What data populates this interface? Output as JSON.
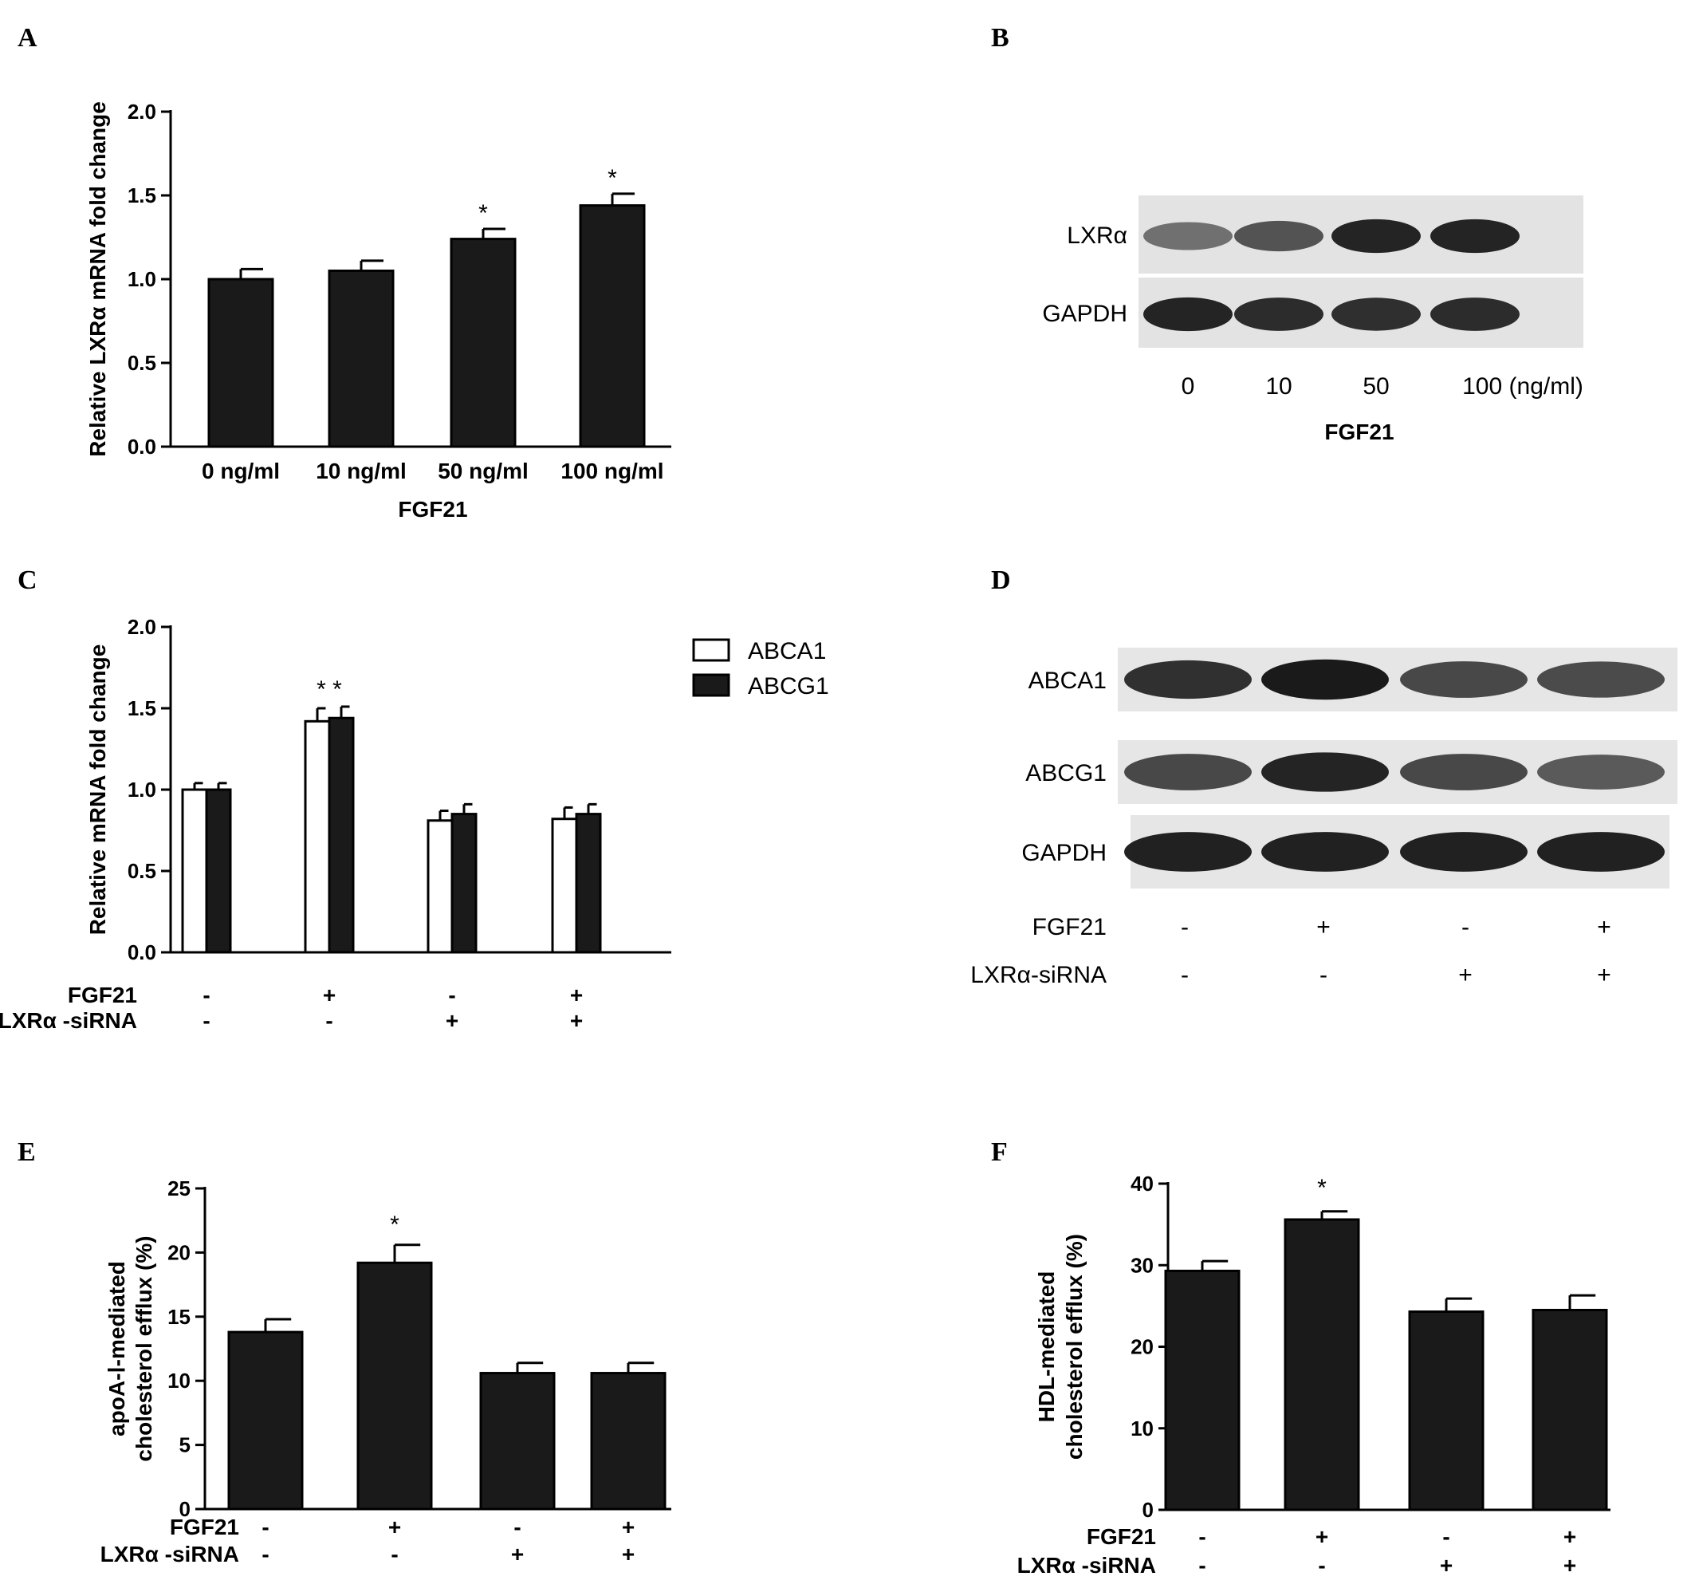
{
  "figure": {
    "panel_letters": [
      "A",
      "B",
      "C",
      "D",
      "E",
      "F"
    ]
  },
  "chart_data": [
    {
      "panel": "A",
      "type": "bar",
      "ylabel": "Relative LXRα  mRNA fold change",
      "xlabel": "FGF21",
      "categories": [
        "0 ng/ml",
        "10 ng/ml",
        "50 ng/ml",
        "100 ng/ml"
      ],
      "values": [
        1.0,
        1.05,
        1.24,
        1.44
      ],
      "errors": [
        0.06,
        0.06,
        0.06,
        0.07
      ],
      "significance": [
        "",
        "",
        "*",
        "*"
      ],
      "ylim": [
        0,
        2.0
      ],
      "yticks": [
        "0.0",
        "0.5",
        "1.0",
        "1.5",
        "2.0"
      ],
      "bar_color": "#1a1a1a"
    },
    {
      "panel": "C",
      "type": "bar",
      "ylabel": "Relative mRNA fold change",
      "series": [
        {
          "name": "ABCA1",
          "values": [
            1.0,
            1.42,
            0.81,
            0.82
          ],
          "errors": [
            0.04,
            0.08,
            0.06,
            0.07
          ],
          "color": "#ffffff"
        },
        {
          "name": "ABCG1",
          "values": [
            1.0,
            1.44,
            0.85,
            0.85
          ],
          "errors": [
            0.04,
            0.07,
            0.06,
            0.06
          ],
          "color": "#1a1a1a"
        }
      ],
      "significance": [
        "",
        "* *",
        "",
        ""
      ],
      "ylim": [
        0,
        2.0
      ],
      "yticks": [
        "0.0",
        "0.5",
        "1.0",
        "1.5",
        "2.0"
      ],
      "conditions": {
        "rows": [
          "FGF21",
          "LXRα -siRNA"
        ],
        "values": [
          [
            "-",
            "+",
            "-",
            "+"
          ],
          [
            "-",
            "-",
            "+",
            "+"
          ]
        ]
      }
    },
    {
      "panel": "E",
      "type": "bar",
      "ylabel": [
        "apoA-Ⅰ-mediated",
        "cholesterol efflux (%)"
      ],
      "values": [
        13.8,
        19.2,
        10.6,
        10.6
      ],
      "errors": [
        1.0,
        1.4,
        0.8,
        0.8
      ],
      "significance": [
        "",
        "*",
        "",
        ""
      ],
      "ylim": [
        0,
        25
      ],
      "yticks": [
        "0",
        "5",
        "10",
        "15",
        "20",
        "25"
      ],
      "conditions": {
        "rows": [
          "FGF21",
          "LXRα -siRNA"
        ],
        "values": [
          [
            "-",
            "+",
            "-",
            "+"
          ],
          [
            "-",
            "-",
            "+",
            "+"
          ]
        ]
      },
      "bar_color": "#1a1a1a"
    },
    {
      "panel": "F",
      "type": "bar",
      "ylabel": [
        "HDL-mediated",
        "cholesterol efflux (%)"
      ],
      "values": [
        29.3,
        35.6,
        24.3,
        24.5
      ],
      "errors": [
        1.2,
        1.0,
        1.6,
        1.8
      ],
      "significance": [
        "",
        "*",
        "",
        ""
      ],
      "ylim": [
        0,
        40
      ],
      "yticks": [
        "0",
        "10",
        "20",
        "30",
        "40"
      ],
      "conditions": {
        "rows": [
          "FGF21",
          "LXRα -siRNA"
        ],
        "values": [
          [
            "-",
            "+",
            "-",
            "+"
          ],
          [
            "-",
            "-",
            "+",
            "+"
          ]
        ]
      },
      "bar_color": "#1a1a1a"
    }
  ],
  "blots": [
    {
      "panel": "B",
      "rows": [
        {
          "label": "LXRα",
          "intensities": [
            0.55,
            0.72,
            0.95,
            0.95
          ]
        },
        {
          "label": "GAPDH",
          "intensities": [
            0.95,
            0.92,
            0.9,
            0.92
          ]
        }
      ],
      "lane_labels": [
        "0",
        "10",
        "50",
        "100 (ng/ml)"
      ],
      "xlabel": "FGF21"
    },
    {
      "panel": "D",
      "rows": [
        {
          "label": "ABCA1",
          "intensities": [
            0.9,
            1.0,
            0.78,
            0.76
          ]
        },
        {
          "label": "ABCG1",
          "intensities": [
            0.78,
            0.95,
            0.78,
            0.68
          ]
        },
        {
          "label": "GAPDH",
          "intensities": [
            0.97,
            0.97,
            0.97,
            0.97
          ]
        }
      ],
      "conditions": {
        "rows": [
          "FGF21",
          "LXRα-siRNA"
        ],
        "values": [
          [
            "-",
            "+",
            "-",
            "+"
          ],
          [
            "-",
            "-",
            "+",
            "+"
          ]
        ]
      }
    }
  ]
}
